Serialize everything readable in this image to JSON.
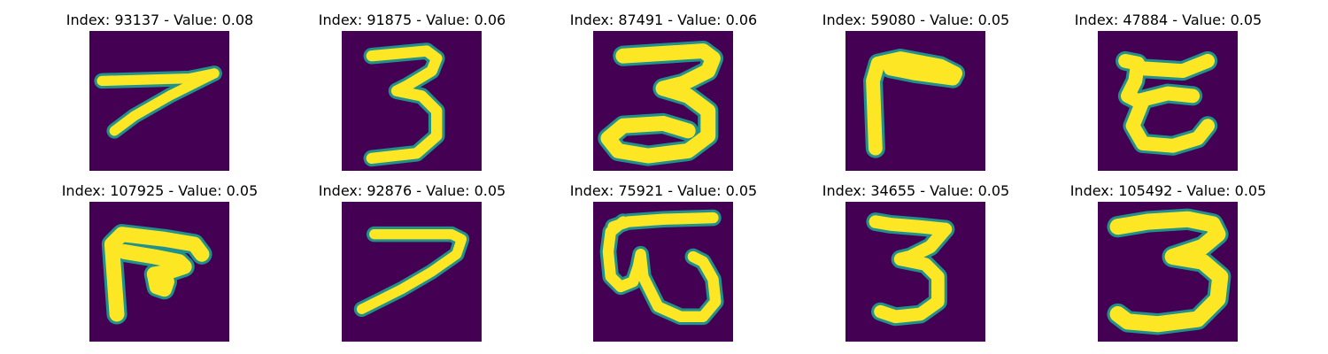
{
  "colors": {
    "background": "#440154",
    "stroke_mid": "#21918c",
    "stroke_core": "#fde725"
  },
  "panels": [
    {
      "title": "Index: 93137 - Value: 0.08",
      "glyph": "seven-slant"
    },
    {
      "title": "Index: 91875 - Value: 0.06",
      "glyph": "three-narrow"
    },
    {
      "title": "Index: 87491 - Value: 0.06",
      "glyph": "three-wide"
    },
    {
      "title": "Index: 59080 - Value: 0.05",
      "glyph": "angle-hook"
    },
    {
      "title": "Index: 47884 - Value: 0.05",
      "glyph": "e-curl"
    },
    {
      "title": "Index: 107925 - Value: 0.05",
      "glyph": "pi-loop"
    },
    {
      "title": "Index: 92876 - Value: 0.05",
      "glyph": "seven-long"
    },
    {
      "title": "Index: 75921 - Value: 0.05",
      "glyph": "omega-loop"
    },
    {
      "title": "Index: 34655 - Value: 0.05",
      "glyph": "three-tall"
    },
    {
      "title": "Index: 105492 - Value: 0.05",
      "glyph": "three-bold"
    }
  ]
}
